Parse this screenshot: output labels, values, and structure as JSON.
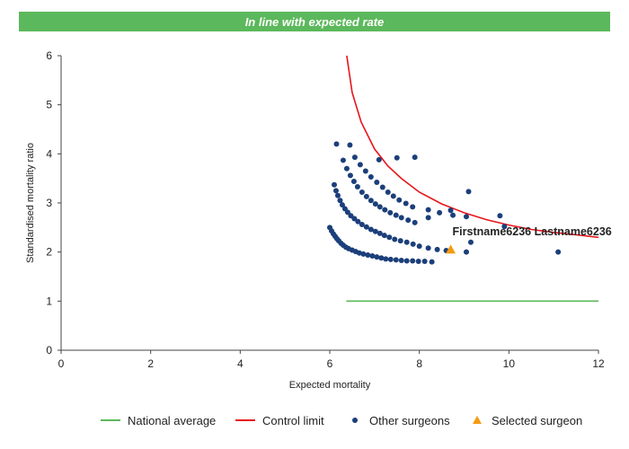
{
  "banner": {
    "text": "In line with expected rate",
    "color": "#5cb85c"
  },
  "chart_data": {
    "type": "scatter",
    "title": "In line with expected rate",
    "xlabel": "Expected mortality",
    "ylabel": "Standardised mortality ratio",
    "xlim": [
      0,
      12
    ],
    "ylim": [
      0,
      6
    ],
    "xticks": [
      0,
      2,
      4,
      6,
      8,
      10,
      12
    ],
    "yticks": [
      0,
      1,
      2,
      3,
      4,
      5,
      6
    ],
    "grid": false,
    "legend_position": "bottom",
    "series": [
      {
        "name": "National average",
        "kind": "line",
        "color": "#5cb85c",
        "x": [
          6.37,
          12.0
        ],
        "y": [
          1.0,
          1.0
        ]
      },
      {
        "name": "Control limit",
        "kind": "line",
        "color": "#e8141a",
        "x": [
          6.38,
          6.5,
          6.7,
          7.0,
          7.3,
          7.6,
          8.0,
          8.5,
          9.0,
          9.5,
          10.0,
          10.5,
          11.0,
          11.5,
          12.0
        ],
        "y": [
          6.0,
          5.25,
          4.65,
          4.1,
          3.75,
          3.5,
          3.22,
          2.98,
          2.8,
          2.66,
          2.55,
          2.46,
          2.4,
          2.35,
          2.3
        ]
      },
      {
        "name": "Other surgeons",
        "kind": "points",
        "color": "#1b3f7a",
        "x": [
          6.0,
          6.04,
          6.08,
          6.12,
          6.16,
          6.2,
          6.25,
          6.3,
          6.36,
          6.42,
          6.5,
          6.58,
          6.66,
          6.75,
          6.85,
          6.95,
          7.05,
          7.15,
          7.25,
          7.36,
          7.48,
          7.6,
          7.72,
          7.85,
          7.98,
          8.12,
          8.28,
          6.1,
          6.14,
          6.18,
          6.23,
          6.28,
          6.34,
          6.4,
          6.47,
          6.55,
          6.63,
          6.72,
          6.82,
          6.92,
          7.02,
          7.12,
          7.22,
          7.33,
          7.45,
          7.58,
          7.72,
          7.86,
          8.0,
          8.2,
          8.4,
          8.6,
          6.3,
          6.38,
          6.46,
          6.54,
          6.62,
          6.72,
          6.82,
          6.92,
          7.02,
          7.12,
          7.23,
          7.35,
          7.48,
          7.6,
          7.75,
          7.9,
          8.2,
          8.7,
          9.05,
          6.56,
          6.68,
          6.8,
          6.92,
          7.05,
          7.18,
          7.3,
          7.42,
          7.55,
          7.7,
          7.85,
          8.2,
          8.45,
          8.75,
          6.15,
          6.45,
          7.1,
          7.5,
          7.9,
          9.1,
          9.05,
          9.15,
          9.9,
          11.1,
          9.8
        ],
        "y": [
          2.5,
          2.43,
          2.37,
          2.32,
          2.27,
          2.23,
          2.18,
          2.14,
          2.1,
          2.07,
          2.04,
          2.01,
          1.98,
          1.96,
          1.94,
          1.92,
          1.9,
          1.88,
          1.86,
          1.85,
          1.84,
          1.83,
          1.82,
          1.82,
          1.81,
          1.81,
          1.8,
          3.37,
          3.25,
          3.15,
          3.05,
          2.96,
          2.88,
          2.81,
          2.74,
          2.68,
          2.62,
          2.56,
          2.51,
          2.46,
          2.42,
          2.38,
          2.34,
          2.3,
          2.26,
          2.23,
          2.2,
          2.16,
          2.12,
          2.08,
          2.05,
          2.03,
          3.87,
          3.7,
          3.56,
          3.44,
          3.33,
          3.22,
          3.13,
          3.05,
          2.98,
          2.92,
          2.86,
          2.8,
          2.75,
          2.7,
          2.65,
          2.6,
          2.7,
          2.85,
          2.72,
          3.93,
          3.78,
          3.65,
          3.53,
          3.42,
          3.32,
          3.22,
          3.14,
          3.06,
          2.99,
          2.92,
          2.86,
          2.8,
          2.75,
          4.2,
          4.18,
          3.88,
          3.92,
          3.93,
          3.23,
          2.0,
          2.2,
          2.52,
          2.0,
          2.74
        ]
      },
      {
        "name": "Selected surgeon",
        "kind": "points",
        "marker": "triangle",
        "color": "#f39c12",
        "x": [
          8.7
        ],
        "y": [
          2.05
        ],
        "label": "Firstname6236 Lastname6236"
      }
    ]
  }
}
